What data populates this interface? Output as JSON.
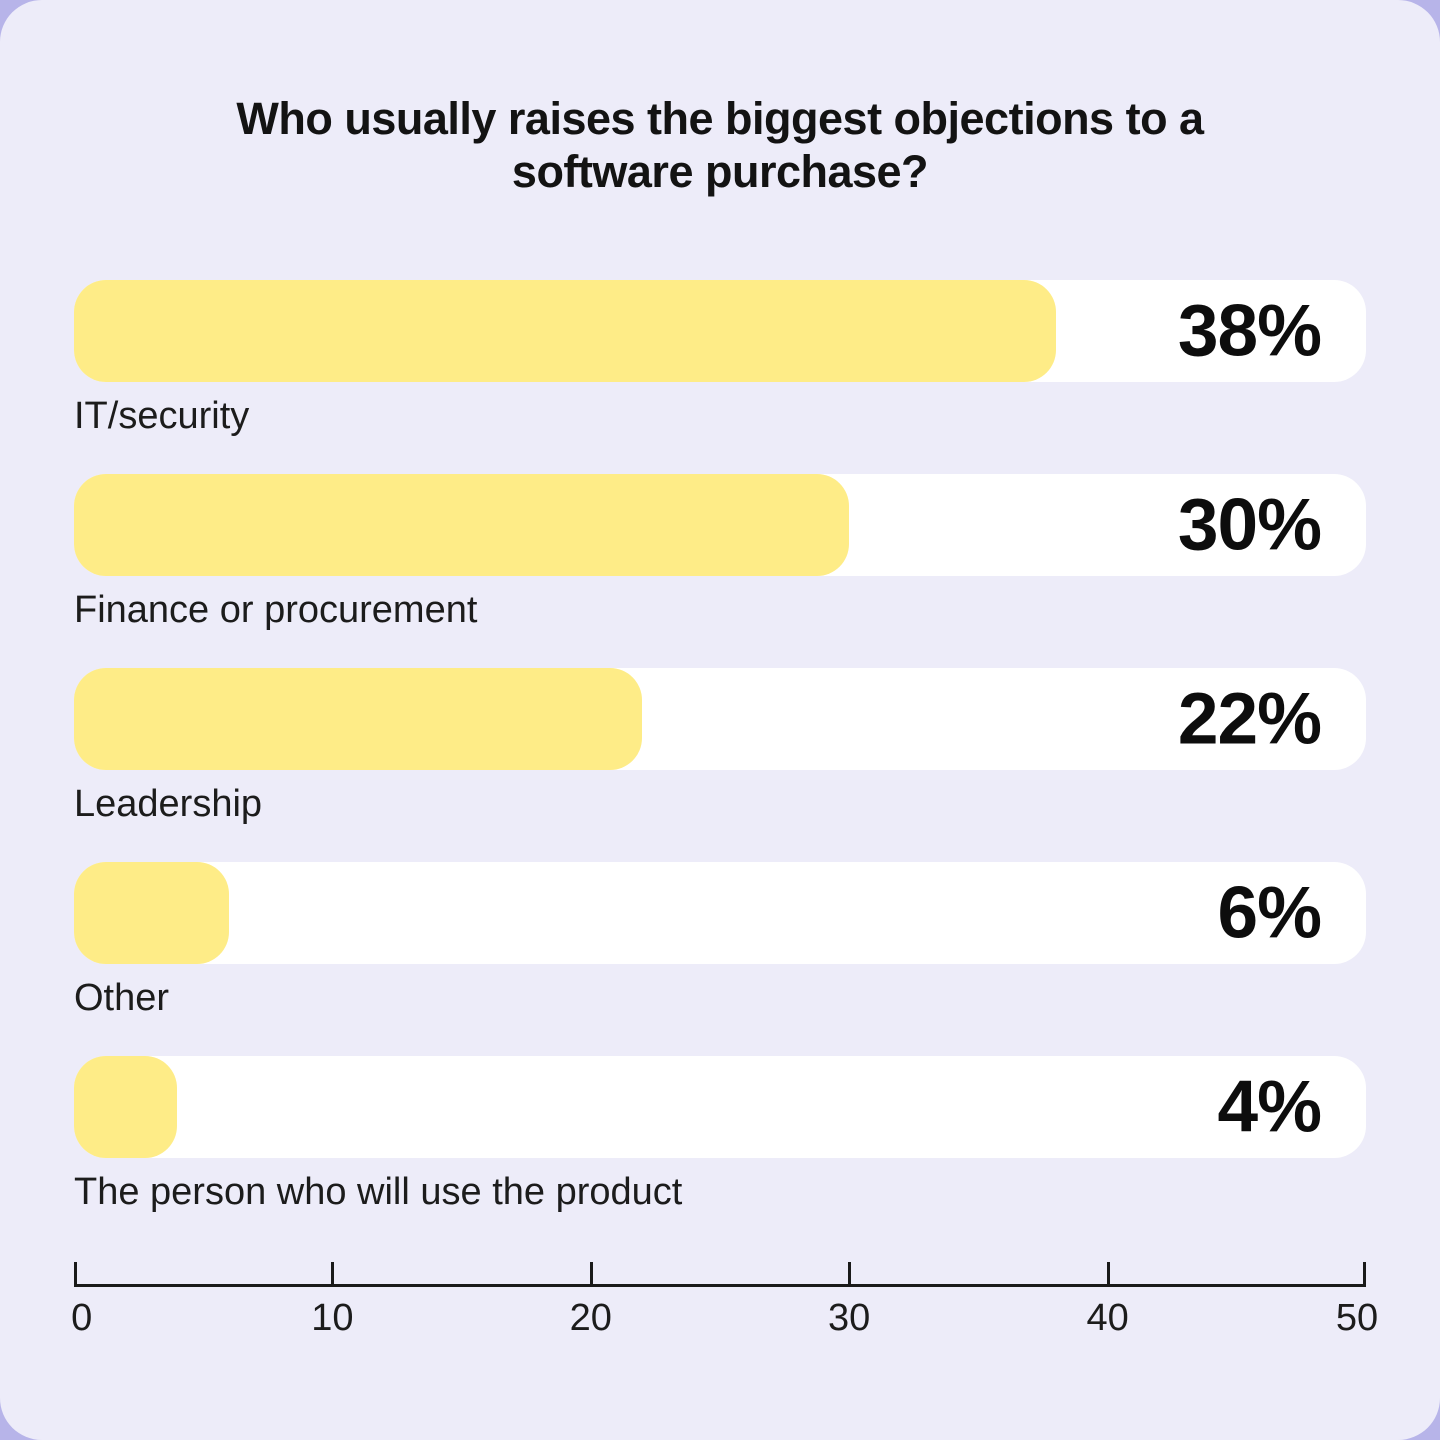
{
  "header": {
    "title_line1": "Who usually raises the biggest objections to a",
    "title_line2": "software purchase?"
  },
  "chart_data": {
    "type": "bar",
    "orientation": "horizontal",
    "title": "Who usually raises the biggest objections to a software purchase?",
    "categories": [
      "IT/security",
      "Finance or procurement",
      "Leadership",
      "Other",
      "The person who will use the product"
    ],
    "values": [
      38,
      30,
      22,
      6,
      4
    ],
    "value_labels": [
      "38%",
      "30%",
      "22%",
      "6%",
      "4%"
    ],
    "xlabel": "",
    "ylabel": "",
    "xlim": [
      0,
      50
    ],
    "xmax": 50,
    "x_ticks": [
      "0",
      "10",
      "20",
      "30",
      "40",
      "50"
    ],
    "grid": false,
    "legend": false,
    "colors": {
      "bar_fill": "#feec87",
      "bar_track": "#ffffff",
      "card_background": "#edecf9",
      "page_background": "#b7b4e9",
      "text": "#131313",
      "axis_line": "#1a1a1a"
    }
  }
}
